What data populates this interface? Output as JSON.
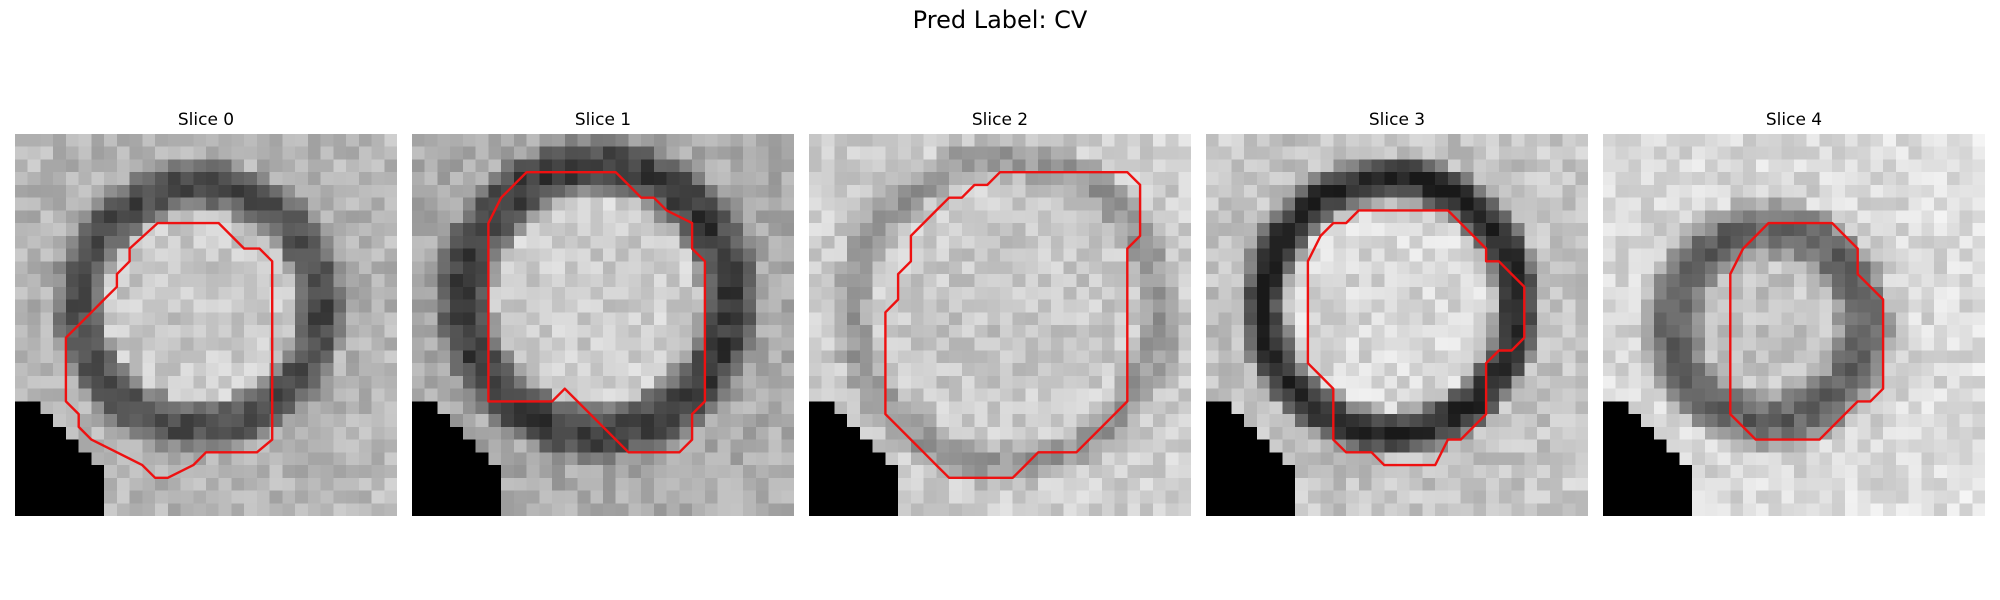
{
  "figure": {
    "title": "Pred Label: CV",
    "contour_color": "#ee1111",
    "colormap": "gray",
    "panels": [
      {
        "title": "Slice 0"
      },
      {
        "title": "Slice 1"
      },
      {
        "title": "Slice 2"
      },
      {
        "title": "Slice 3"
      },
      {
        "title": "Slice 4"
      }
    ]
  }
}
